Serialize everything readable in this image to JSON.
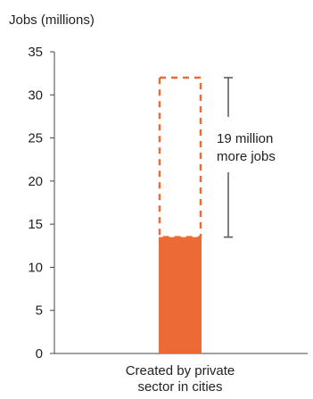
{
  "chart_data": {
    "type": "bar",
    "ylabel": "Jobs (millions)",
    "ylim": [
      0,
      35
    ],
    "yticks": [
      "0",
      "5",
      "10",
      "15",
      "20",
      "25",
      "30",
      "35"
    ],
    "categories": [
      "Created by private sector in cities"
    ],
    "category_lines": [
      "Created by private",
      "sector in cities"
    ],
    "values": [
      13.5
    ],
    "potential_total": [
      32
    ],
    "annotation": {
      "lines": [
        "19 million",
        "more jobs"
      ],
      "from": 13.5,
      "to": 32
    },
    "grid": false,
    "legend": "none",
    "colors": {
      "bar": "#ec6a35",
      "axis": "#444444",
      "bracket": "#555555"
    }
  }
}
